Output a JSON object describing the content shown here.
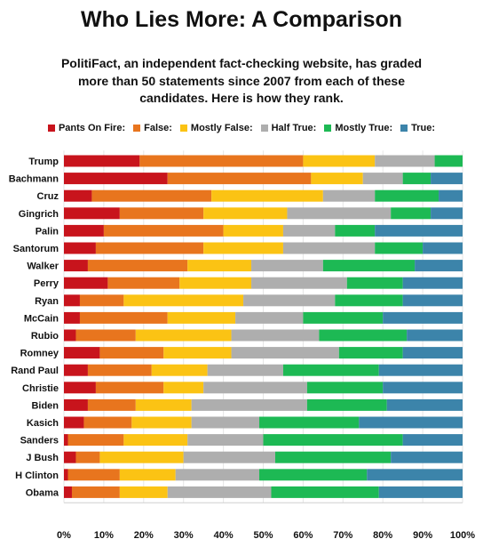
{
  "chart_data": {
    "type": "bar",
    "orientation": "horizontal",
    "stacked": true,
    "title": "Who Lies More: A Comparison",
    "subtitle": "PolitiFact, an independent fact-checking website, has graded more than 50 statements since 2007 from each of these candidates. Here is how they rank.",
    "legend_position": "top",
    "xlim": [
      0,
      100
    ],
    "x_ticks": [
      "0%",
      "10%",
      "20%",
      "30%",
      "40%",
      "50%",
      "60%",
      "70%",
      "80%",
      "90%",
      "100%"
    ],
    "categories": [
      "Trump",
      "Bachmann",
      "Cruz",
      "Gingrich",
      "Palin",
      "Santorum",
      "Walker",
      "Perry",
      "Ryan",
      "McCain",
      "Rubio",
      "Romney",
      "Rand Paul",
      "Christie",
      "Biden",
      "Kasich",
      "Sanders",
      "J Bush",
      "H Clinton",
      "Obama"
    ],
    "series": [
      {
        "name": "Pants On Fire:",
        "color": "#c8141c",
        "values": [
          19,
          26,
          7,
          14,
          10,
          8,
          6,
          11,
          4,
          4,
          3,
          9,
          6,
          8,
          6,
          5,
          1,
          3,
          1,
          2
        ]
      },
      {
        "name": "False:",
        "color": "#e8751e",
        "values": [
          41,
          36,
          30,
          21,
          30,
          27,
          25,
          18,
          11,
          22,
          15,
          16,
          16,
          17,
          12,
          12,
          14,
          6,
          13,
          12
        ]
      },
      {
        "name": "Mostly False:",
        "color": "#fbc314",
        "values": [
          18,
          13,
          28,
          21,
          15,
          20,
          16,
          18,
          30,
          17,
          24,
          17,
          14,
          10,
          14,
          15,
          16,
          21,
          14,
          12
        ]
      },
      {
        "name": "Half True:",
        "color": "#aeaeae",
        "values": [
          15,
          10,
          13,
          26,
          13,
          23,
          18,
          24,
          23,
          17,
          22,
          27,
          19,
          26,
          29,
          17,
          19,
          23,
          21,
          26
        ]
      },
      {
        "name": "Mostly True:",
        "color": "#1db954",
        "values": [
          7,
          7,
          16,
          10,
          10,
          12,
          23,
          14,
          17,
          20,
          22,
          16,
          24,
          19,
          20,
          25,
          35,
          29,
          27,
          27
        ]
      },
      {
        "name": "True:",
        "color": "#3c84aa",
        "values": [
          0,
          8,
          6,
          8,
          22,
          10,
          12,
          15,
          15,
          20,
          14,
          15,
          21,
          20,
          19,
          26,
          15,
          18,
          24,
          21
        ]
      }
    ]
  }
}
